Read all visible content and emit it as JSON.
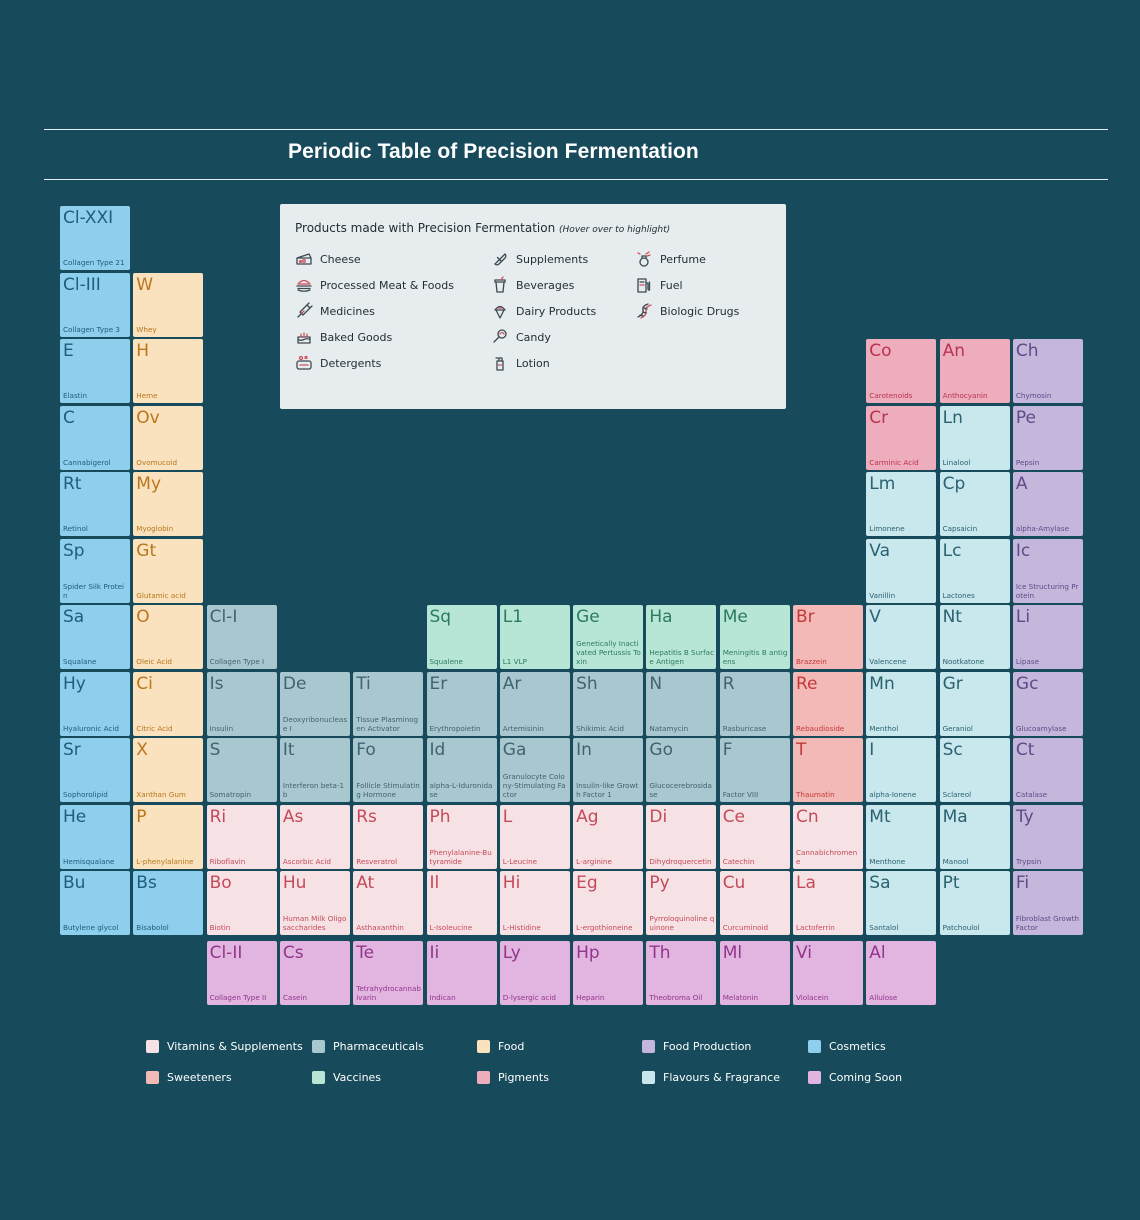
{
  "title": "Periodic Table of Precision Fermentation",
  "products_legend": {
    "heading": "Products made with Precision Fermentation",
    "hint": "(Hover over to highlight)",
    "items": [
      {
        "label": "Cheese",
        "icon": "cheese-icon"
      },
      {
        "label": "Processed Meat & Foods",
        "icon": "burger-icon"
      },
      {
        "label": "Medicines",
        "icon": "syringe-icon"
      },
      {
        "label": "Baked Goods",
        "icon": "cake-icon"
      },
      {
        "label": "Detergents",
        "icon": "soap-icon"
      },
      {
        "label": "Supplements",
        "icon": "pill-icon"
      },
      {
        "label": "Beverages",
        "icon": "cup-icon"
      },
      {
        "label": "Dairy Products",
        "icon": "ice-cream-icon"
      },
      {
        "label": "Candy",
        "icon": "lollipop-icon"
      },
      {
        "label": "Lotion",
        "icon": "lotion-bottle-icon"
      },
      {
        "label": "Perfume",
        "icon": "perfume-icon"
      },
      {
        "label": "Fuel",
        "icon": "fuel-pump-icon"
      },
      {
        "label": "Biologic Drugs",
        "icon": "dna-icon"
      }
    ]
  },
  "categories": [
    {
      "key": "vit",
      "label": "Vitamins & Supplements",
      "bg": "#f6e2e4",
      "fg": "#c44a5a"
    },
    {
      "key": "pharma",
      "label": "Pharmaceuticals",
      "bg": "#a9c7cf",
      "fg": "#3f6470"
    },
    {
      "key": "food",
      "label": "Food",
      "bg": "#f9e2bd",
      "fg": "#b9761d"
    },
    {
      "key": "foodprod",
      "label": "Food Production",
      "bg": "#c5b6dc",
      "fg": "#5d4b86"
    },
    {
      "key": "cosm",
      "label": "Cosmetics",
      "bg": "#8dcfec",
      "fg": "#1f5e7c"
    },
    {
      "key": "sweet",
      "label": "Sweeteners",
      "bg": "#f3b9b7",
      "fg": "#c23a3a"
    },
    {
      "key": "vacc",
      "label": "Vaccines",
      "bg": "#b8e6d6",
      "fg": "#2b7a62"
    },
    {
      "key": "pig",
      "label": "Pigments",
      "bg": "#eeadbd",
      "fg": "#b93252"
    },
    {
      "key": "flav",
      "label": "Flavours & Fragrance",
      "bg": "#c8e8ee",
      "fg": "#2b6170"
    },
    {
      "key": "soon",
      "label": "Coming Soon",
      "bg": "#e2b4e0",
      "fg": "#92368c"
    }
  ],
  "elements": [
    {
      "sym": "Cl-XXI",
      "name": "Collagen Type 21",
      "cat": "cosm",
      "c": 0,
      "r": 0
    },
    {
      "sym": "Cl-III",
      "name": "Collagen Type 3",
      "cat": "cosm",
      "c": 0,
      "r": 1
    },
    {
      "sym": "W",
      "name": "Whey",
      "cat": "food",
      "c": 1,
      "r": 1
    },
    {
      "sym": "E",
      "name": "Elastin",
      "cat": "cosm",
      "c": 0,
      "r": 2
    },
    {
      "sym": "H",
      "name": "Heme",
      "cat": "food",
      "c": 1,
      "r": 2
    },
    {
      "sym": "Co",
      "name": "Carotenoids",
      "cat": "pig",
      "c": 11,
      "r": 2
    },
    {
      "sym": "An",
      "name": "Anthocyanin",
      "cat": "pig",
      "c": 12,
      "r": 2
    },
    {
      "sym": "Ch",
      "name": "Chymosin",
      "cat": "foodprod",
      "c": 13,
      "r": 2
    },
    {
      "sym": "C",
      "name": "Cannabigerol",
      "cat": "cosm",
      "c": 0,
      "r": 3
    },
    {
      "sym": "Ov",
      "name": "Ovomucoid",
      "cat": "food",
      "c": 1,
      "r": 3
    },
    {
      "sym": "Cr",
      "name": "Carminic Acid",
      "cat": "pig",
      "c": 11,
      "r": 3
    },
    {
      "sym": "Ln",
      "name": "Linalool",
      "cat": "flav",
      "c": 12,
      "r": 3
    },
    {
      "sym": "Pe",
      "name": "Pepsin",
      "cat": "foodprod",
      "c": 13,
      "r": 3
    },
    {
      "sym": "Rt",
      "name": "Retinol",
      "cat": "cosm",
      "c": 0,
      "r": 4
    },
    {
      "sym": "My",
      "name": "Myoglobin",
      "cat": "food",
      "c": 1,
      "r": 4
    },
    {
      "sym": "Lm",
      "name": "Limonene",
      "cat": "flav",
      "c": 11,
      "r": 4
    },
    {
      "sym": "Cp",
      "name": "Capsaicin",
      "cat": "flav",
      "c": 12,
      "r": 4
    },
    {
      "sym": "A",
      "name": "alpha-Amylase",
      "cat": "foodprod",
      "c": 13,
      "r": 4
    },
    {
      "sym": "Sp",
      "name": "Spider Silk Protein",
      "cat": "cosm",
      "c": 0,
      "r": 5
    },
    {
      "sym": "Gt",
      "name": "Glutamic acid",
      "cat": "food",
      "c": 1,
      "r": 5
    },
    {
      "sym": "Va",
      "name": "Vanillin",
      "cat": "flav",
      "c": 11,
      "r": 5
    },
    {
      "sym": "Lc",
      "name": "Lactones",
      "cat": "flav",
      "c": 12,
      "r": 5
    },
    {
      "sym": "Ic",
      "name": "Ice Structuring Protein",
      "cat": "foodprod",
      "c": 13,
      "r": 5
    },
    {
      "sym": "Sa",
      "name": "Squalane",
      "cat": "cosm",
      "c": 0,
      "r": 6
    },
    {
      "sym": "O",
      "name": "Oleic Acid",
      "cat": "food",
      "c": 1,
      "r": 6
    },
    {
      "sym": "Cl-I",
      "name": "Collagen Type I",
      "cat": "pharma",
      "c": 2,
      "r": 6
    },
    {
      "sym": "Sq",
      "name": "Squalene",
      "cat": "vacc",
      "c": 5,
      "r": 6
    },
    {
      "sym": "L1",
      "name": "L1 VLP",
      "cat": "vacc",
      "c": 6,
      "r": 6
    },
    {
      "sym": "Ge",
      "name": "Genetically Inactivated Pertussis Toxin",
      "cat": "vacc",
      "c": 7,
      "r": 6
    },
    {
      "sym": "Ha",
      "name": "Hepatitis B Surface Antigen",
      "cat": "vacc",
      "c": 8,
      "r": 6
    },
    {
      "sym": "Me",
      "name": "Meningitis B antigens",
      "cat": "vacc",
      "c": 9,
      "r": 6
    },
    {
      "sym": "Br",
      "name": "Brazzein",
      "cat": "sweet",
      "c": 10,
      "r": 6
    },
    {
      "sym": "V",
      "name": "Valencene",
      "cat": "flav",
      "c": 11,
      "r": 6
    },
    {
      "sym": "Nt",
      "name": "Nootkatone",
      "cat": "flav",
      "c": 12,
      "r": 6
    },
    {
      "sym": "Li",
      "name": "Lipase",
      "cat": "foodprod",
      "c": 13,
      "r": 6
    },
    {
      "sym": "Hy",
      "name": "Hyaluronic Acid",
      "cat": "cosm",
      "c": 0,
      "r": 7
    },
    {
      "sym": "Ci",
      "name": "Citric Acid",
      "cat": "food",
      "c": 1,
      "r": 7
    },
    {
      "sym": "Is",
      "name": "Insulin",
      "cat": "pharma",
      "c": 2,
      "r": 7
    },
    {
      "sym": "De",
      "name": "Deoxyribonuclease I",
      "cat": "pharma",
      "c": 3,
      "r": 7
    },
    {
      "sym": "Ti",
      "name": "Tissue Plasminogen Activator",
      "cat": "pharma",
      "c": 4,
      "r": 7
    },
    {
      "sym": "Er",
      "name": "Erythropoietin",
      "cat": "pharma",
      "c": 5,
      "r": 7
    },
    {
      "sym": "Ar",
      "name": "Artemisinin",
      "cat": "pharma",
      "c": 6,
      "r": 7
    },
    {
      "sym": "Sh",
      "name": "Shikimic Acid",
      "cat": "pharma",
      "c": 7,
      "r": 7
    },
    {
      "sym": "N",
      "name": "Natamycin",
      "cat": "pharma",
      "c": 8,
      "r": 7
    },
    {
      "sym": "R",
      "name": "Rasburicase",
      "cat": "pharma",
      "c": 9,
      "r": 7
    },
    {
      "sym": "Re",
      "name": "Rebaudioside",
      "cat": "sweet",
      "c": 10,
      "r": 7
    },
    {
      "sym": "Mn",
      "name": "Menthol",
      "cat": "flav",
      "c": 11,
      "r": 7
    },
    {
      "sym": "Gr",
      "name": "Geraniol",
      "cat": "flav",
      "c": 12,
      "r": 7
    },
    {
      "sym": "Gc",
      "name": "Glucoamylase",
      "cat": "foodprod",
      "c": 13,
      "r": 7
    },
    {
      "sym": "Sr",
      "name": "Sophorolipid",
      "cat": "cosm",
      "c": 0,
      "r": 8
    },
    {
      "sym": "X",
      "name": "Xanthan Gum",
      "cat": "food",
      "c": 1,
      "r": 8
    },
    {
      "sym": "S",
      "name": "Somatropin",
      "cat": "pharma",
      "c": 2,
      "r": 8
    },
    {
      "sym": "It",
      "name": "Interferon beta-1b",
      "cat": "pharma",
      "c": 3,
      "r": 8
    },
    {
      "sym": "Fo",
      "name": "Follicle Stimulating Hormone",
      "cat": "pharma",
      "c": 4,
      "r": 8
    },
    {
      "sym": "Id",
      "name": "alpha-L-Iduronidase",
      "cat": "pharma",
      "c": 5,
      "r": 8
    },
    {
      "sym": "Ga",
      "name": "Granulocyte Colony-Stimulating Factor",
      "cat": "pharma",
      "c": 6,
      "r": 8
    },
    {
      "sym": "In",
      "name": "Insulin-like Growth Factor 1",
      "cat": "pharma",
      "c": 7,
      "r": 8
    },
    {
      "sym": "Go",
      "name": "Glucocerebrosidase",
      "cat": "pharma",
      "c": 8,
      "r": 8
    },
    {
      "sym": "F",
      "name": "Factor VIII",
      "cat": "pharma",
      "c": 9,
      "r": 8
    },
    {
      "sym": "T",
      "name": "Thaumatin",
      "cat": "sweet",
      "c": 10,
      "r": 8
    },
    {
      "sym": "I",
      "name": "alpha-Ionene",
      "cat": "flav",
      "c": 11,
      "r": 8
    },
    {
      "sym": "Sc",
      "name": "Sclareol",
      "cat": "flav",
      "c": 12,
      "r": 8
    },
    {
      "sym": "Ct",
      "name": "Catalase",
      "cat": "foodprod",
      "c": 13,
      "r": 8
    },
    {
      "sym": "He",
      "name": "Hemisqualane",
      "cat": "cosm",
      "c": 0,
      "r": 9
    },
    {
      "sym": "P",
      "name": "L-phenylalanine",
      "cat": "food",
      "c": 1,
      "r": 9
    },
    {
      "sym": "Ri",
      "name": "Riboflavin",
      "cat": "vit",
      "c": 2,
      "r": 9
    },
    {
      "sym": "As",
      "name": "Ascorbic Acid",
      "cat": "vit",
      "c": 3,
      "r": 9
    },
    {
      "sym": "Rs",
      "name": "Resveratrol",
      "cat": "vit",
      "c": 4,
      "r": 9
    },
    {
      "sym": "Ph",
      "name": "Phenylalanine-Butyramide",
      "cat": "vit",
      "c": 5,
      "r": 9
    },
    {
      "sym": "L",
      "name": "L-Leucine",
      "cat": "vit",
      "c": 6,
      "r": 9
    },
    {
      "sym": "Ag",
      "name": "L-arginine",
      "cat": "vit",
      "c": 7,
      "r": 9
    },
    {
      "sym": "Di",
      "name": "Dihydroquercetin",
      "cat": "vit",
      "c": 8,
      "r": 9
    },
    {
      "sym": "Ce",
      "name": "Catechin",
      "cat": "vit",
      "c": 9,
      "r": 9
    },
    {
      "sym": "Cn",
      "name": "Cannabichromene",
      "cat": "vit",
      "c": 10,
      "r": 9
    },
    {
      "sym": "Mt",
      "name": "Menthone",
      "cat": "flav",
      "c": 11,
      "r": 9
    },
    {
      "sym": "Ma",
      "name": "Manool",
      "cat": "flav",
      "c": 12,
      "r": 9
    },
    {
      "sym": "Ty",
      "name": "Trypsin",
      "cat": "foodprod",
      "c": 13,
      "r": 9
    },
    {
      "sym": "Bu",
      "name": "Butylene glycol",
      "cat": "cosm",
      "c": 0,
      "r": 10
    },
    {
      "sym": "Bs",
      "name": "Bisabolol",
      "cat": "cosm",
      "c": 1,
      "r": 10
    },
    {
      "sym": "Bo",
      "name": "Biotin",
      "cat": "vit",
      "c": 2,
      "r": 10
    },
    {
      "sym": "Hu",
      "name": "Human Milk Oligosaccharides",
      "cat": "vit",
      "c": 3,
      "r": 10
    },
    {
      "sym": "At",
      "name": "Asthaxanthin",
      "cat": "vit",
      "c": 4,
      "r": 10
    },
    {
      "sym": "Il",
      "name": "L-Isoleucine",
      "cat": "vit",
      "c": 5,
      "r": 10
    },
    {
      "sym": "Hi",
      "name": "L-Histidine",
      "cat": "vit",
      "c": 6,
      "r": 10
    },
    {
      "sym": "Eg",
      "name": "L-ergothioneine",
      "cat": "vit",
      "c": 7,
      "r": 10
    },
    {
      "sym": "Py",
      "name": "Pyrroloquinoline quinone",
      "cat": "vit",
      "c": 8,
      "r": 10
    },
    {
      "sym": "Cu",
      "name": "Curcuminoid",
      "cat": "vit",
      "c": 9,
      "r": 10
    },
    {
      "sym": "La",
      "name": "Lactoferrin",
      "cat": "vit",
      "c": 10,
      "r": 10
    },
    {
      "sym": "Sa",
      "name": "Santalol",
      "cat": "flav",
      "c": 11,
      "r": 10
    },
    {
      "sym": "Pt",
      "name": "Patchoulol",
      "cat": "flav",
      "c": 12,
      "r": 10
    },
    {
      "sym": "Fi",
      "name": "Fibroblast Growth Factor",
      "cat": "foodprod",
      "c": 13,
      "r": 10
    },
    {
      "sym": "Cl-II",
      "name": "Collagen Type II",
      "cat": "soon",
      "c": 2,
      "r": 11
    },
    {
      "sym": "Cs",
      "name": "Casein",
      "cat": "soon",
      "c": 3,
      "r": 11
    },
    {
      "sym": "Te",
      "name": "Tetrahydrocannabivarin",
      "cat": "soon",
      "c": 4,
      "r": 11
    },
    {
      "sym": "Ii",
      "name": "Indican",
      "cat": "soon",
      "c": 5,
      "r": 11
    },
    {
      "sym": "Ly",
      "name": "D-lysergic acid",
      "cat": "soon",
      "c": 6,
      "r": 11
    },
    {
      "sym": "Hp",
      "name": "Heparin",
      "cat": "soon",
      "c": 7,
      "r": 11
    },
    {
      "sym": "Th",
      "name": "Theobroma Oil",
      "cat": "soon",
      "c": 8,
      "r": 11
    },
    {
      "sym": "Ml",
      "name": "Melatonin",
      "cat": "soon",
      "c": 9,
      "r": 11
    },
    {
      "sym": "Vi",
      "name": "Violacein",
      "cat": "soon",
      "c": 10,
      "r": 11
    },
    {
      "sym": "Al",
      "name": "Allulose",
      "cat": "soon",
      "c": 11,
      "r": 11
    }
  ]
}
